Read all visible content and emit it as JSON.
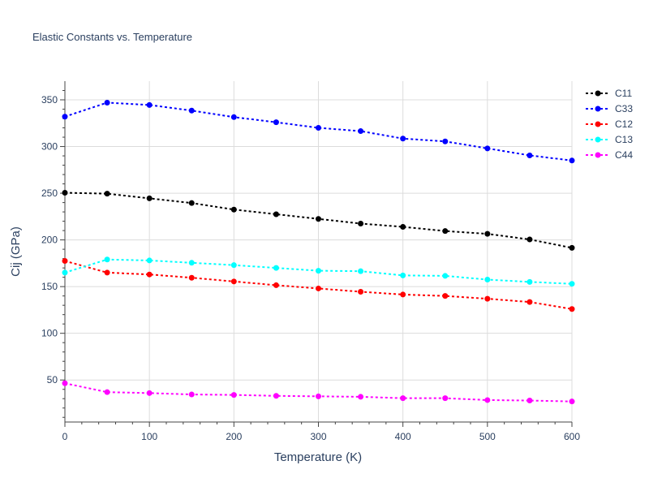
{
  "chart_data": {
    "type": "line",
    "title": "Elastic Constants vs. Temperature",
    "xlabel": "Temperature (K)",
    "ylabel": "Cij (GPa)",
    "xlim": [
      0,
      600
    ],
    "ylim": [
      5,
      370
    ],
    "x_ticks": [
      0,
      100,
      200,
      300,
      400,
      500,
      600
    ],
    "y_ticks": [
      50,
      100,
      150,
      200,
      250,
      300,
      350
    ],
    "grid": true,
    "legend_position": "top-right",
    "x": [
      0,
      50,
      100,
      150,
      200,
      250,
      300,
      350,
      400,
      450,
      500,
      550,
      600
    ],
    "series": [
      {
        "name": "C11",
        "color": "#000000",
        "values": [
          250.5,
          249.5,
          244.5,
          239.5,
          232.5,
          227.5,
          222.5,
          217.5,
          214,
          209.5,
          206.5,
          200.5,
          191.5
        ]
      },
      {
        "name": "C33",
        "color": "#0000ff",
        "values": [
          332,
          347,
          344.5,
          338.5,
          331.5,
          326,
          320,
          316.5,
          308.5,
          305.5,
          298,
          290.5,
          285
        ]
      },
      {
        "name": "C12",
        "color": "#ff0000",
        "values": [
          177.5,
          165,
          163,
          159.5,
          155.5,
          151.5,
          148,
          144.5,
          141.5,
          140,
          137,
          133.5,
          126
        ]
      },
      {
        "name": "C13",
        "color": "#00ffff",
        "values": [
          165,
          179,
          178,
          175.5,
          173,
          170,
          167,
          166.5,
          162,
          161.5,
          157.5,
          155,
          153
        ]
      },
      {
        "name": "C44",
        "color": "#ff00ff",
        "values": [
          46.5,
          37,
          36,
          34.5,
          34,
          33,
          32.5,
          32,
          30.5,
          30.5,
          28.5,
          28,
          27
        ]
      }
    ]
  }
}
